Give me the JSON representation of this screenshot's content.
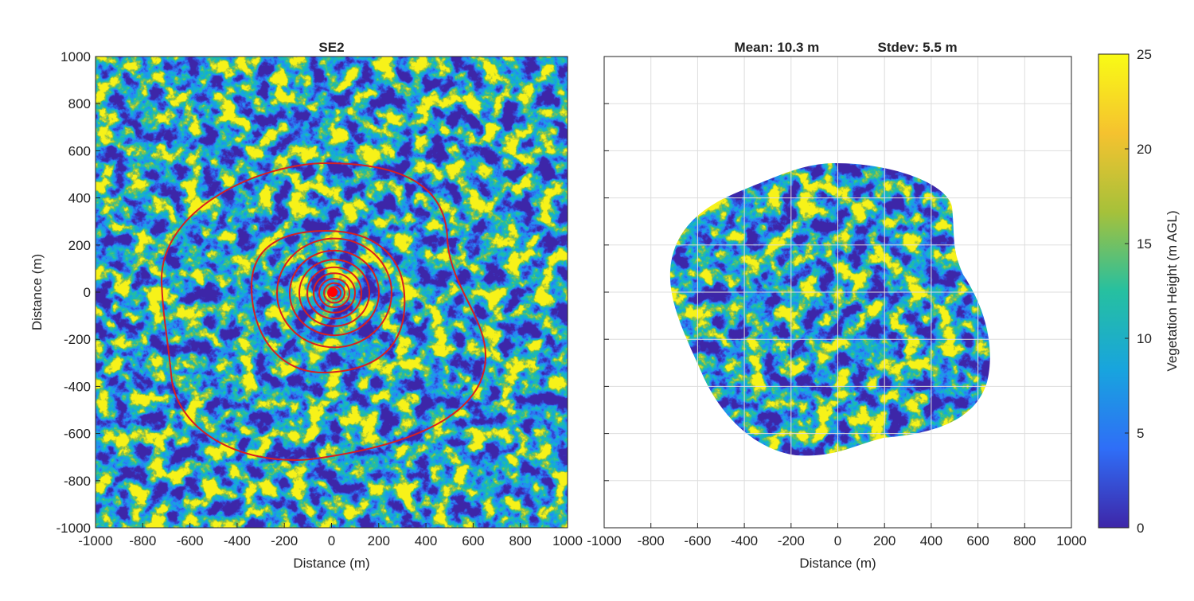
{
  "chart_data": [
    {
      "type": "heatmap",
      "title": "SE2",
      "xlabel": "Distance (m)",
      "ylabel": "Distance (m)",
      "xlim": [
        -1000,
        1000
      ],
      "ylim": [
        -1000,
        1000
      ],
      "xticks": [
        -1000,
        -800,
        -600,
        -400,
        -200,
        0,
        200,
        400,
        600,
        800,
        1000
      ],
      "yticks": [
        -1000,
        -800,
        -600,
        -400,
        -200,
        0,
        200,
        400,
        600,
        800,
        1000
      ],
      "grid": false
    },
    {
      "type": "heatmap",
      "annotations": [
        "Mean:  10.3 m",
        "Stdev:   5.5 m"
      ],
      "xlabel": "Distance (m)",
      "xlim": [
        -1000,
        1000
      ],
      "ylim": [
        -1000,
        1000
      ],
      "xticks": [
        -1000,
        -800,
        -600,
        -400,
        -200,
        0,
        200,
        400,
        600,
        800,
        1000
      ],
      "yticks": [
        -1000,
        -800,
        -600,
        -400,
        -200,
        0,
        200,
        400,
        600,
        800,
        1000
      ],
      "grid": true,
      "colorbar": {
        "label": "Vegetation Height (m AGL)",
        "clim": [
          0,
          25
        ],
        "ticks": [
          0,
          5,
          10,
          15,
          20,
          25
        ],
        "colors": [
          "#3e26a8",
          "#2f6ef7",
          "#18a4de",
          "#26c0a0",
          "#a6c13a",
          "#f5c22f",
          "#f9fb15"
        ]
      }
    }
  ]
}
